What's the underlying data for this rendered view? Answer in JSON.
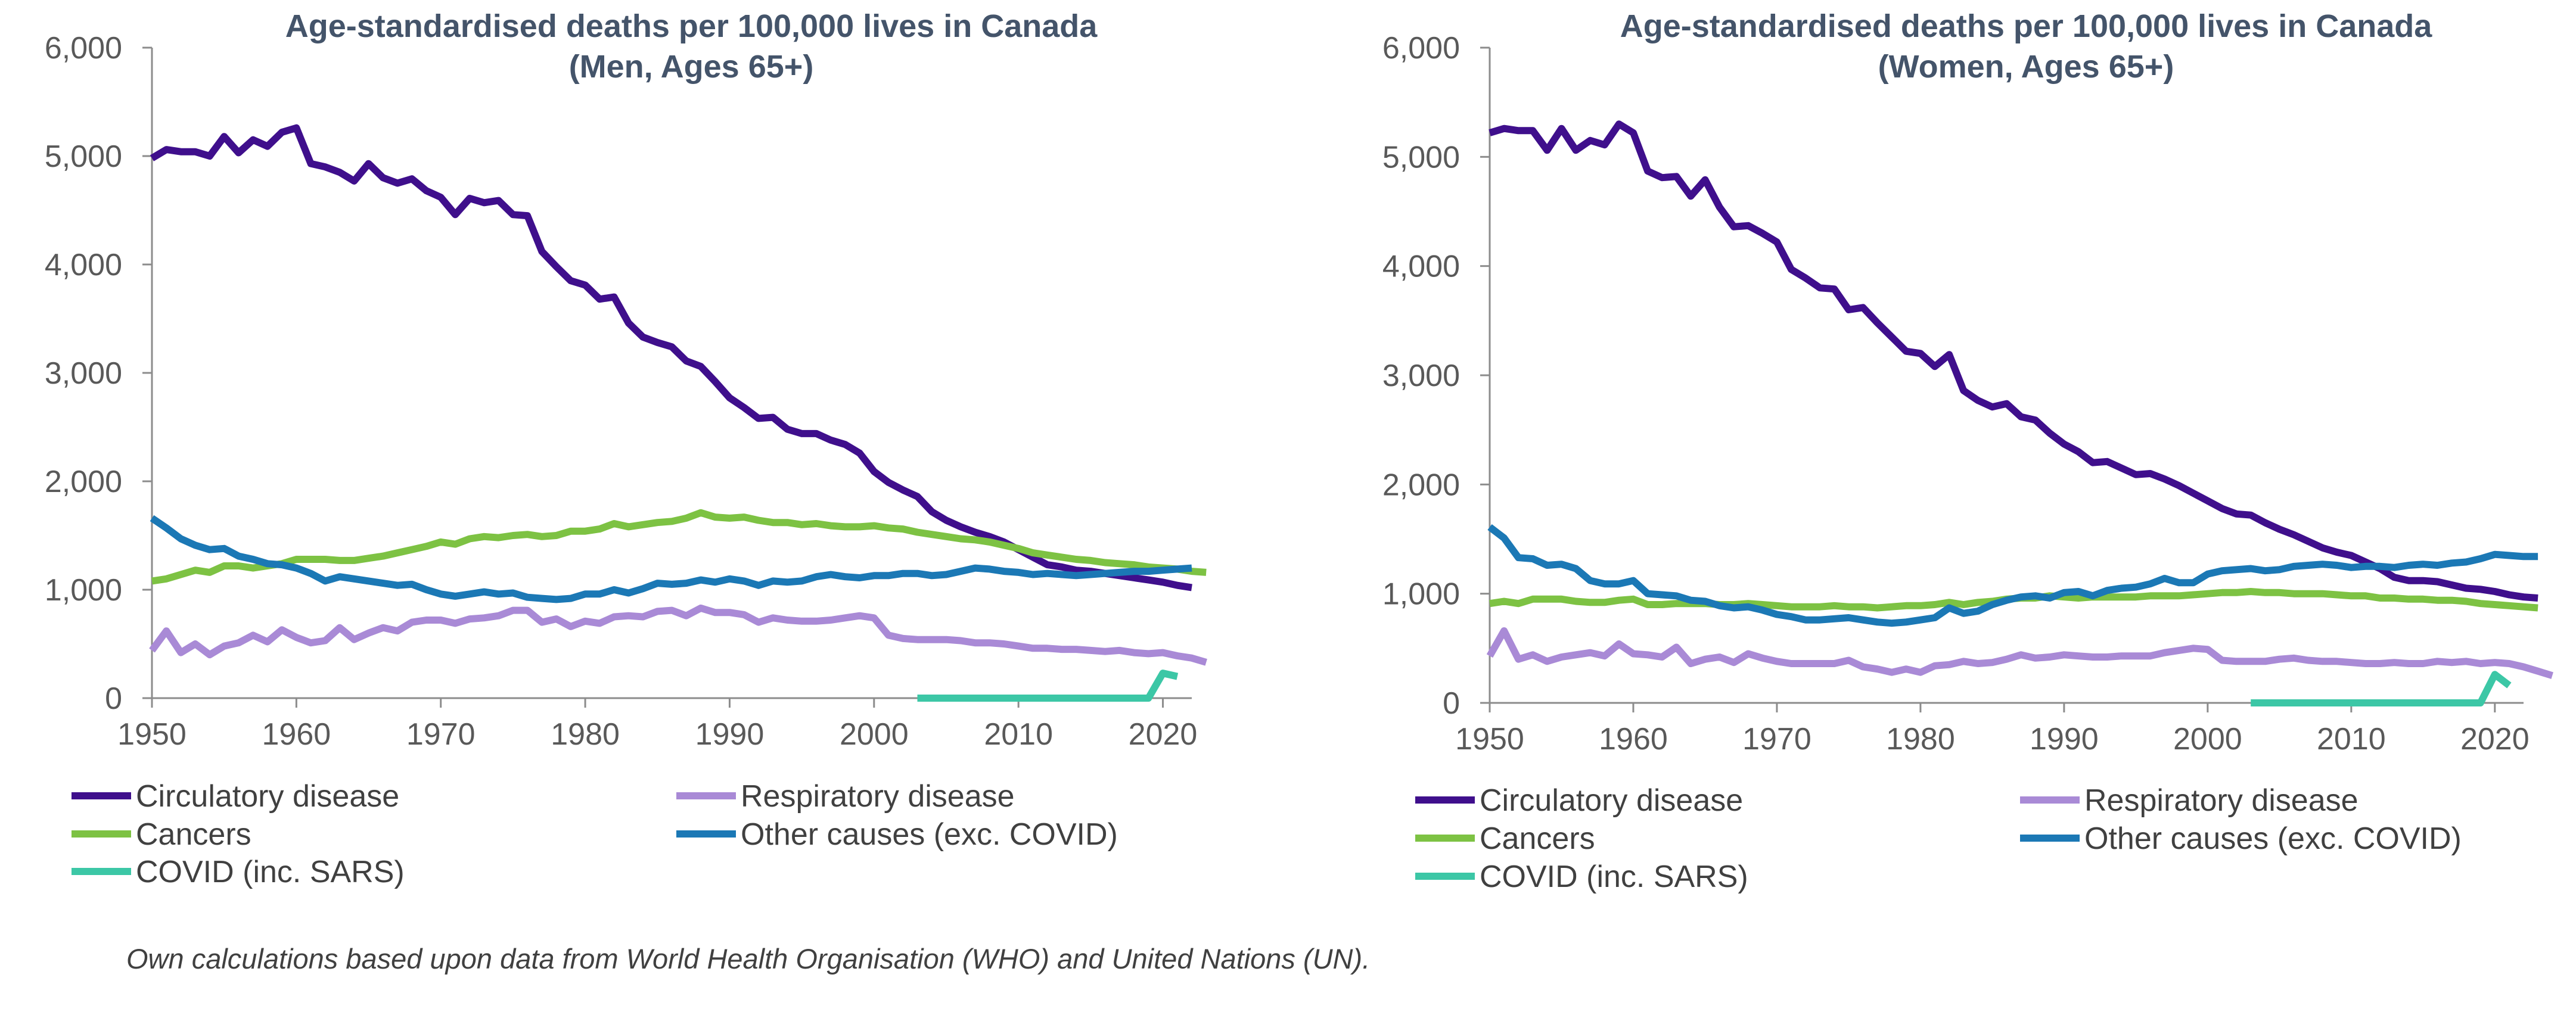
{
  "source_note": "Own calculations based upon data from World Health Organisation (WHO) and United Nations (UN).",
  "colors": {
    "Circulatory disease": "#3F0F8C",
    "Respiratory disease": "#A98AD6",
    "Cancers": "#7DC243",
    "Other causes (exc. COVID)": "#1B78B5",
    "COVID (inc. SARS)": "#3CC7A6"
  },
  "chart_data": [
    {
      "type": "line",
      "title": "Age-standardised deaths per 100,000 lives in Canada",
      "subtitle": "(Men, Ages 65+)",
      "xlim": [
        1950,
        2022
      ],
      "ylim": [
        0,
        6000
      ],
      "xticks": [
        "1950",
        "1960",
        "1970",
        "1980",
        "1990",
        "2000",
        "2010",
        "2020"
      ],
      "yticks": [
        "0",
        "1,000",
        "2,000",
        "3,000",
        "4,000",
        "5,000",
        "6,000"
      ],
      "grid": false,
      "legend_position": "bottom",
      "series": [
        {
          "name": "Circulatory disease",
          "x0": 1950,
          "values": [
            4980,
            5060,
            5040,
            5040,
            5000,
            5180,
            5030,
            5150,
            5090,
            5220,
            5260,
            4930,
            4900,
            4850,
            4770,
            4930,
            4800,
            4750,
            4790,
            4680,
            4620,
            4460,
            4610,
            4570,
            4590,
            4460,
            4450,
            4120,
            3980,
            3850,
            3810,
            3680,
            3700,
            3460,
            3330,
            3280,
            3240,
            3110,
            3060,
            2920,
            2770,
            2680,
            2580,
            2590,
            2480,
            2440,
            2440,
            2380,
            2340,
            2260,
            2090,
            1990,
            1920,
            1860,
            1720,
            1640,
            1580,
            1530,
            1490,
            1440,
            1370,
            1300,
            1230,
            1210,
            1180,
            1170,
            1150,
            1130,
            1110,
            1090,
            1070,
            1040,
            1020
          ]
        },
        {
          "name": "Respiratory disease",
          "x0": 1950,
          "values": [
            440,
            620,
            420,
            500,
            400,
            480,
            510,
            580,
            520,
            630,
            560,
            510,
            530,
            650,
            540,
            600,
            650,
            620,
            700,
            720,
            720,
            690,
            730,
            740,
            760,
            810,
            810,
            700,
            730,
            660,
            710,
            690,
            750,
            760,
            750,
            800,
            810,
            760,
            830,
            790,
            790,
            770,
            700,
            740,
            720,
            710,
            710,
            720,
            740,
            760,
            740,
            580,
            550,
            540,
            540,
            540,
            530,
            510,
            510,
            500,
            480,
            460,
            460,
            450,
            450,
            440,
            430,
            440,
            420,
            410,
            420,
            390,
            370,
            330
          ]
        },
        {
          "name": "Cancers",
          "x0": 1950,
          "values": [
            1080,
            1100,
            1140,
            1180,
            1160,
            1220,
            1220,
            1200,
            1220,
            1240,
            1280,
            1280,
            1280,
            1270,
            1270,
            1290,
            1310,
            1340,
            1370,
            1400,
            1440,
            1420,
            1470,
            1490,
            1480,
            1500,
            1510,
            1490,
            1500,
            1540,
            1540,
            1560,
            1610,
            1580,
            1600,
            1620,
            1630,
            1660,
            1710,
            1670,
            1660,
            1670,
            1640,
            1620,
            1620,
            1600,
            1610,
            1590,
            1580,
            1580,
            1590,
            1570,
            1560,
            1530,
            1510,
            1490,
            1470,
            1460,
            1440,
            1410,
            1380,
            1340,
            1320,
            1300,
            1280,
            1270,
            1250,
            1240,
            1230,
            1210,
            1200,
            1190,
            1170,
            1160
          ]
        },
        {
          "name": "Other causes (exc. COVID)",
          "x0": 1950,
          "values": [
            1660,
            1570,
            1470,
            1410,
            1370,
            1380,
            1310,
            1280,
            1240,
            1230,
            1200,
            1150,
            1080,
            1120,
            1100,
            1080,
            1060,
            1040,
            1050,
            1000,
            960,
            940,
            960,
            980,
            960,
            970,
            930,
            920,
            910,
            920,
            960,
            960,
            1000,
            970,
            1010,
            1060,
            1050,
            1060,
            1090,
            1070,
            1100,
            1080,
            1040,
            1080,
            1070,
            1080,
            1120,
            1140,
            1120,
            1110,
            1130,
            1130,
            1150,
            1150,
            1130,
            1140,
            1170,
            1200,
            1190,
            1170,
            1160,
            1140,
            1150,
            1140,
            1130,
            1140,
            1150,
            1160,
            1170,
            1170,
            1180,
            1190,
            1200
          ]
        },
        {
          "name": "COVID (inc. SARS)",
          "x0": 2003,
          "values": [
            0,
            0,
            0,
            0,
            0,
            0,
            0,
            0,
            0,
            0,
            0,
            0,
            0,
            0,
            0,
            0,
            0,
            230,
            200
          ]
        }
      ]
    },
    {
      "type": "line",
      "title": "Age-standardised deaths per 100,000 lives in Canada",
      "subtitle": "(Women, Ages 65+)",
      "xlim": [
        1950,
        2022
      ],
      "ylim": [
        0,
        6000
      ],
      "xticks": [
        "1950",
        "1960",
        "1970",
        "1980",
        "1990",
        "2000",
        "2010",
        "2020"
      ],
      "yticks": [
        "0",
        "1,000",
        "2,000",
        "3,000",
        "4,000",
        "5,000",
        "6,000"
      ],
      "grid": false,
      "legend_position": "bottom",
      "series": [
        {
          "name": "Circulatory disease",
          "x0": 1950,
          "values": [
            5220,
            5260,
            5240,
            5240,
            5060,
            5260,
            5060,
            5150,
            5110,
            5300,
            5220,
            4870,
            4810,
            4820,
            4640,
            4790,
            4540,
            4360,
            4370,
            4300,
            4220,
            3970,
            3890,
            3800,
            3790,
            3600,
            3620,
            3480,
            3350,
            3220,
            3200,
            3080,
            3190,
            2860,
            2770,
            2710,
            2740,
            2620,
            2590,
            2470,
            2370,
            2300,
            2200,
            2210,
            2150,
            2090,
            2100,
            2050,
            1990,
            1920,
            1850,
            1780,
            1730,
            1720,
            1650,
            1590,
            1540,
            1480,
            1420,
            1380,
            1350,
            1290,
            1230,
            1150,
            1120,
            1120,
            1110,
            1080,
            1050,
            1040,
            1020,
            990,
            970,
            960
          ]
        },
        {
          "name": "Respiratory disease",
          "x0": 1950,
          "values": [
            430,
            660,
            400,
            440,
            380,
            420,
            440,
            460,
            430,
            540,
            450,
            440,
            420,
            510,
            360,
            400,
            420,
            370,
            450,
            410,
            380,
            360,
            360,
            360,
            360,
            390,
            330,
            310,
            280,
            310,
            280,
            340,
            350,
            380,
            360,
            370,
            400,
            440,
            410,
            420,
            440,
            430,
            420,
            420,
            430,
            430,
            430,
            460,
            480,
            500,
            490,
            390,
            380,
            380,
            380,
            400,
            410,
            390,
            380,
            380,
            370,
            360,
            360,
            370,
            360,
            360,
            380,
            370,
            380,
            360,
            370,
            360,
            330,
            290,
            250
          ]
        },
        {
          "name": "Cancers",
          "x0": 1950,
          "values": [
            910,
            930,
            910,
            950,
            950,
            950,
            930,
            920,
            920,
            940,
            950,
            900,
            900,
            910,
            910,
            910,
            900,
            900,
            910,
            900,
            890,
            880,
            880,
            880,
            890,
            880,
            880,
            870,
            880,
            890,
            890,
            900,
            920,
            900,
            920,
            930,
            950,
            960,
            960,
            980,
            970,
            960,
            970,
            970,
            970,
            970,
            980,
            980,
            980,
            990,
            1000,
            1010,
            1010,
            1020,
            1010,
            1010,
            1000,
            1000,
            1000,
            990,
            980,
            980,
            960,
            960,
            950,
            950,
            940,
            940,
            930,
            910,
            900,
            890,
            880,
            870
          ]
        },
        {
          "name": "Other causes (exc. COVID)",
          "x0": 1950,
          "values": [
            1610,
            1510,
            1330,
            1320,
            1260,
            1270,
            1230,
            1120,
            1090,
            1090,
            1120,
            1000,
            990,
            980,
            940,
            930,
            890,
            870,
            880,
            850,
            810,
            790,
            760,
            760,
            770,
            780,
            760,
            740,
            730,
            740,
            760,
            780,
            870,
            820,
            840,
            900,
            940,
            970,
            980,
            960,
            1010,
            1020,
            980,
            1030,
            1050,
            1060,
            1090,
            1140,
            1100,
            1100,
            1180,
            1210,
            1220,
            1230,
            1210,
            1220,
            1250,
            1260,
            1270,
            1260,
            1240,
            1250,
            1250,
            1240,
            1260,
            1270,
            1260,
            1280,
            1290,
            1320,
            1360,
            1350,
            1340,
            1340
          ]
        },
        {
          "name": "COVID (inc. SARS)",
          "x0": 2003,
          "values": [
            0,
            0,
            0,
            0,
            0,
            0,
            0,
            0,
            0,
            0,
            0,
            0,
            0,
            0,
            0,
            0,
            0,
            260,
            160
          ]
        }
      ]
    }
  ]
}
